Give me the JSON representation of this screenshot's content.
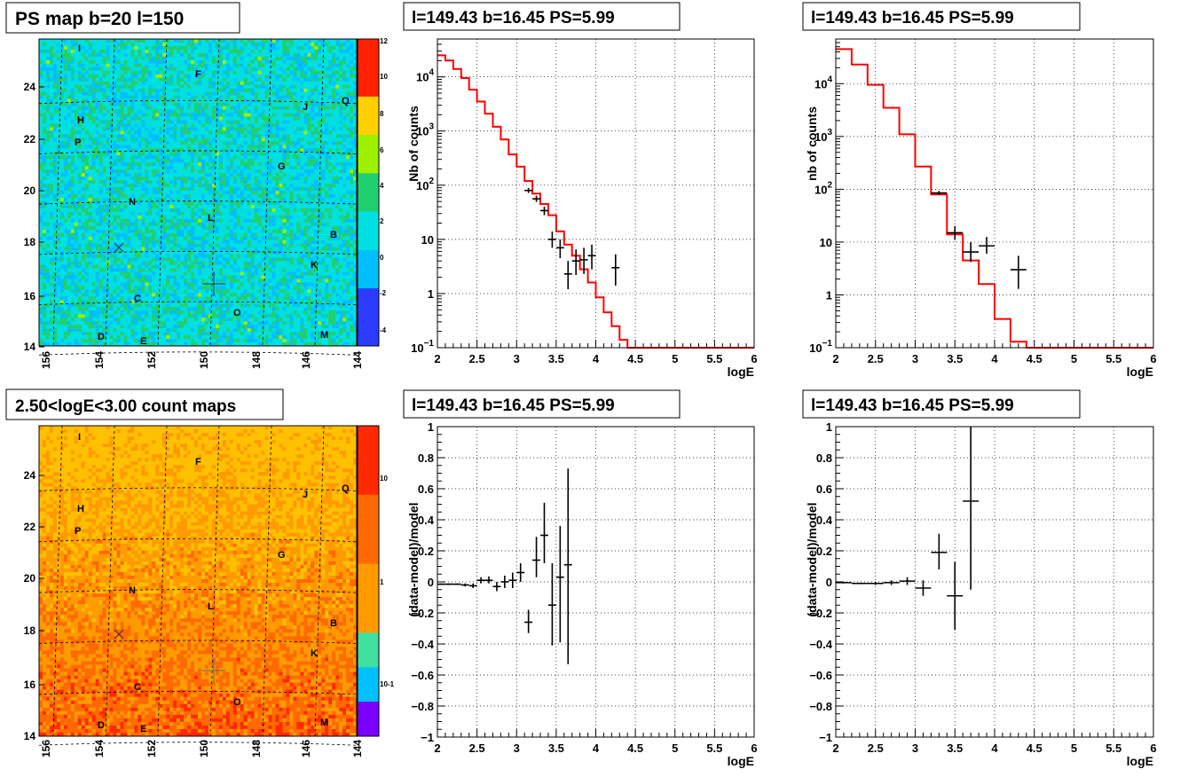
{
  "maps": [
    {
      "title": "PS map b=20 l=150",
      "type": "heatmap",
      "scale_ticks": [
        "12",
        "10",
        "8",
        "6",
        "4",
        "2",
        "0",
        "-2",
        "-4"
      ],
      "y_ticks": [
        "24",
        "22",
        "20",
        "18",
        "16",
        "14"
      ],
      "x_ticks": [
        "156",
        "154",
        "152",
        "150",
        "148",
        "146",
        "144"
      ],
      "labels": [
        "I",
        "F",
        "H",
        "J",
        "Q",
        "P",
        "G",
        "N",
        "L",
        "B",
        "K",
        "C",
        "O",
        "D",
        "E",
        "M"
      ]
    },
    {
      "title": "2.50<logE<3.00 count maps",
      "type": "heatmap",
      "scale_ticks": [
        "10",
        "1",
        "10-1"
      ],
      "y_ticks": [
        "24",
        "22",
        "20",
        "18",
        "16",
        "14"
      ],
      "x_ticks": [
        "156",
        "154",
        "152",
        "150",
        "148",
        "146",
        "144"
      ],
      "labels": [
        "I",
        "F",
        "H",
        "J",
        "Q",
        "P",
        "G",
        "N",
        "L",
        "B",
        "K",
        "C",
        "O",
        "D",
        "E",
        "M"
      ]
    }
  ],
  "chart_data": [
    {
      "type": "line",
      "title": "l=149.43 b=16.45 PS=5.99",
      "xlabel": "logE",
      "ylabel": "Nb of counts",
      "log_y": true,
      "xlim": [
        2,
        6
      ],
      "ylim": [
        0.1,
        50000
      ],
      "grid": true,
      "x_ticks": [
        "2",
        "2.5",
        "3",
        "3.5",
        "4",
        "4.5",
        "5",
        "5.5",
        "6"
      ],
      "y_ticks": [
        {
          "label": "10",
          "sup": "4",
          "v": 10000
        },
        {
          "label": "10",
          "sup": "3",
          "v": 1000
        },
        {
          "label": "10",
          "sup": "2",
          "v": 100
        },
        {
          "label": "10",
          "sup": "",
          "v": 10
        },
        {
          "label": "1",
          "sup": "",
          "v": 1
        },
        {
          "label": "10",
          "sup": "−1",
          "v": 0.1
        }
      ],
      "model_bin_width": 0.1,
      "model_x_start": 2.0,
      "model_values": [
        25000,
        20000,
        14000,
        9500,
        5800,
        3500,
        2100,
        1200,
        700,
        370,
        220,
        120,
        70,
        45,
        28,
        14,
        8,
        5,
        2.8,
        1.6,
        0.85,
        0.45,
        0.25,
        0.14,
        0.1
      ],
      "points": [
        {
          "x": 3.15,
          "y": 80,
          "lo": 72,
          "hi": 89,
          "dx": 0.05
        },
        {
          "x": 3.25,
          "y": 56,
          "lo": 49,
          "hi": 64,
          "dx": 0.05
        },
        {
          "x": 3.35,
          "y": 34,
          "lo": 28,
          "hi": 40,
          "dx": 0.05
        },
        {
          "x": 3.45,
          "y": 10,
          "lo": 7,
          "hi": 14,
          "dx": 0.05
        },
        {
          "x": 3.55,
          "y": 7,
          "lo": 4.5,
          "hi": 10,
          "dx": 0.05
        },
        {
          "x": 3.65,
          "y": 2.3,
          "lo": 1.2,
          "hi": 4,
          "dx": 0.05
        },
        {
          "x": 3.75,
          "y": 4,
          "lo": 2.2,
          "hi": 6.5,
          "dx": 0.05
        },
        {
          "x": 3.85,
          "y": 4.2,
          "lo": 2.3,
          "hi": 7,
          "dx": 0.05
        },
        {
          "x": 3.95,
          "y": 5,
          "lo": 2.8,
          "hi": 8,
          "dx": 0.05
        },
        {
          "x": 4.25,
          "y": 3,
          "lo": 1.4,
          "hi": 5.3,
          "dx": 0.05
        }
      ]
    },
    {
      "type": "line",
      "title": "l=149.43 b=16.45 PS=5.99",
      "xlabel": "logE",
      "ylabel": "nb of counts",
      "log_y": true,
      "xlim": [
        2,
        6
      ],
      "ylim": [
        0.1,
        70000
      ],
      "grid": true,
      "x_ticks": [
        "2",
        "2.5",
        "3",
        "3.5",
        "4",
        "4.5",
        "5",
        "5.5",
        "6"
      ],
      "y_ticks": [
        {
          "label": "10",
          "sup": "4",
          "v": 10000
        },
        {
          "label": "10",
          "sup": "3",
          "v": 1000
        },
        {
          "label": "10",
          "sup": "2",
          "v": 100
        },
        {
          "label": "10",
          "sup": "",
          "v": 10
        },
        {
          "label": "1",
          "sup": "",
          "v": 1
        },
        {
          "label": "10",
          "sup": "−1",
          "v": 0.1
        }
      ],
      "model_bin_width": 0.2,
      "model_x_start": 2.0,
      "model_values": [
        45000,
        23000,
        9500,
        3500,
        1100,
        270,
        80,
        14,
        4.5,
        1.6,
        0.35,
        0.13,
        0.1,
        0.1,
        0.1,
        0.1,
        0.1,
        0.1,
        0.1,
        0.1
      ],
      "points": [
        {
          "x": 3.3,
          "y": 85,
          "lo": 78,
          "hi": 93,
          "dx": 0.1
        },
        {
          "x": 3.5,
          "y": 15,
          "lo": 11,
          "hi": 20,
          "dx": 0.1
        },
        {
          "x": 3.7,
          "y": 6.5,
          "lo": 4.2,
          "hi": 10,
          "dx": 0.1
        },
        {
          "x": 3.9,
          "y": 8.5,
          "lo": 6,
          "hi": 12.5,
          "dx": 0.1
        },
        {
          "x": 4.3,
          "y": 3,
          "lo": 1.3,
          "hi": 5.5,
          "dx": 0.1
        }
      ]
    },
    {
      "type": "scatter",
      "title": "l=149.43 b=16.45 PS=5.99",
      "xlabel": "logE",
      "ylabel": "(data-model)/model",
      "log_y": false,
      "xlim": [
        2,
        6
      ],
      "ylim": [
        -1,
        1
      ],
      "grid": true,
      "x_ticks": [
        "2",
        "2.5",
        "3",
        "3.5",
        "4",
        "4.5",
        "5",
        "5.5",
        "6"
      ],
      "y_ticks": [
        {
          "label": "1",
          "sup": "",
          "v": 1
        },
        {
          "label": "0.8",
          "sup": "",
          "v": 0.8
        },
        {
          "label": "0.6",
          "sup": "",
          "v": 0.6
        },
        {
          "label": "0.4",
          "sup": "",
          "v": 0.4
        },
        {
          "label": "0.2",
          "sup": "",
          "v": 0.2
        },
        {
          "label": "0",
          "sup": "",
          "v": 0
        },
        {
          "label": "−0.2",
          "sup": "",
          "v": -0.2
        },
        {
          "label": "−0.4",
          "sup": "",
          "v": -0.4
        },
        {
          "label": "−0.6",
          "sup": "",
          "v": -0.6
        },
        {
          "label": "−0.8",
          "sup": "",
          "v": -0.8
        },
        {
          "label": "−1",
          "sup": "",
          "v": -1
        }
      ],
      "points": [
        {
          "x": 2.05,
          "y": -0.015,
          "lo": -0.02,
          "hi": -0.01,
          "dx": 0.05
        },
        {
          "x": 2.15,
          "y": -0.015,
          "lo": -0.02,
          "hi": -0.01,
          "dx": 0.05
        },
        {
          "x": 2.25,
          "y": -0.015,
          "lo": -0.02,
          "hi": -0.01,
          "dx": 0.05
        },
        {
          "x": 2.35,
          "y": -0.02,
          "lo": -0.03,
          "hi": -0.01,
          "dx": 0.05
        },
        {
          "x": 2.45,
          "y": -0.025,
          "lo": -0.04,
          "hi": -0.01,
          "dx": 0.05
        },
        {
          "x": 2.55,
          "y": 0.01,
          "lo": -0.01,
          "hi": 0.03,
          "dx": 0.05
        },
        {
          "x": 2.65,
          "y": 0.01,
          "lo": -0.01,
          "hi": 0.035,
          "dx": 0.05
        },
        {
          "x": 2.75,
          "y": -0.03,
          "lo": -0.06,
          "hi": 0.0,
          "dx": 0.05
        },
        {
          "x": 2.85,
          "y": 0.0,
          "lo": -0.04,
          "hi": 0.04,
          "dx": 0.05
        },
        {
          "x": 2.95,
          "y": 0.01,
          "lo": -0.04,
          "hi": 0.06,
          "dx": 0.05
        },
        {
          "x": 3.05,
          "y": 0.06,
          "lo": 0.0,
          "hi": 0.12,
          "dx": 0.05
        },
        {
          "x": 3.15,
          "y": -0.26,
          "lo": -0.33,
          "hi": -0.18,
          "dx": 0.05
        },
        {
          "x": 3.25,
          "y": 0.14,
          "lo": 0.03,
          "hi": 0.29,
          "dx": 0.05
        },
        {
          "x": 3.35,
          "y": 0.3,
          "lo": 0.12,
          "hi": 0.51,
          "dx": 0.05
        },
        {
          "x": 3.45,
          "y": -0.15,
          "lo": -0.41,
          "hi": 0.12,
          "dx": 0.05
        },
        {
          "x": 3.55,
          "y": 0.03,
          "lo": -0.39,
          "hi": 0.36,
          "dx": 0.05
        },
        {
          "x": 3.65,
          "y": 0.11,
          "lo": -0.53,
          "hi": 0.73,
          "dx": 0.05
        }
      ]
    },
    {
      "type": "scatter",
      "title": "l=149.43 b=16.45 PS=5.99",
      "xlabel": "logE",
      "ylabel": "(data-model)/model",
      "log_y": false,
      "xlim": [
        2,
        6
      ],
      "ylim": [
        -1,
        1
      ],
      "grid": true,
      "x_ticks": [
        "2",
        "2.5",
        "3",
        "3.5",
        "4",
        "4.5",
        "5",
        "5.5",
        "6"
      ],
      "y_ticks": [
        {
          "label": "1",
          "sup": "",
          "v": 1
        },
        {
          "label": "0.8",
          "sup": "",
          "v": 0.8
        },
        {
          "label": "0.6",
          "sup": "",
          "v": 0.6
        },
        {
          "label": "0.4",
          "sup": "",
          "v": 0.4
        },
        {
          "label": "0.2",
          "sup": "",
          "v": 0.2
        },
        {
          "label": "0",
          "sup": "",
          "v": 0
        },
        {
          "label": "−0.2",
          "sup": "",
          "v": -0.2
        },
        {
          "label": "−0.4",
          "sup": "",
          "v": -0.4
        },
        {
          "label": "−0.6",
          "sup": "",
          "v": -0.6
        },
        {
          "label": "−0.8",
          "sup": "",
          "v": -0.8
        },
        {
          "label": "−1",
          "sup": "",
          "v": -1
        }
      ],
      "points": [
        {
          "x": 2.1,
          "y": -0.005,
          "lo": -0.01,
          "hi": 0.0,
          "dx": 0.1
        },
        {
          "x": 2.3,
          "y": -0.01,
          "lo": -0.015,
          "hi": -0.005,
          "dx": 0.1
        },
        {
          "x": 2.5,
          "y": -0.01,
          "lo": -0.02,
          "hi": 0.0,
          "dx": 0.1
        },
        {
          "x": 2.7,
          "y": -0.005,
          "lo": -0.02,
          "hi": 0.01,
          "dx": 0.1
        },
        {
          "x": 2.9,
          "y": 0.005,
          "lo": -0.02,
          "hi": 0.03,
          "dx": 0.1
        },
        {
          "x": 3.1,
          "y": -0.04,
          "lo": -0.09,
          "hi": 0.01,
          "dx": 0.1
        },
        {
          "x": 3.3,
          "y": 0.19,
          "lo": 0.08,
          "hi": 0.31,
          "dx": 0.1
        },
        {
          "x": 3.5,
          "y": -0.09,
          "lo": -0.31,
          "hi": 0.13,
          "dx": 0.1
        },
        {
          "x": 3.7,
          "y": 0.52,
          "lo": -0.05,
          "hi": 1.0,
          "dx": 0.1
        }
      ]
    }
  ]
}
